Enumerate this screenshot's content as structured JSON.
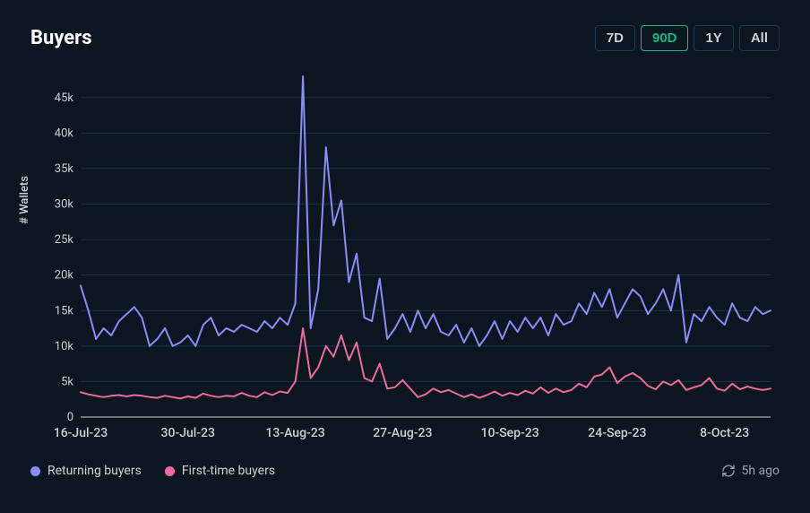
{
  "title": "Buyers",
  "range_buttons": [
    "7D",
    "90D",
    "1Y",
    "All"
  ],
  "range_active_index": 1,
  "chart": {
    "type": "line",
    "y_label": "# Wallets",
    "background_color": "#0b1620",
    "grid_color": "#1e3340",
    "axis_color": "#c9d1d9",
    "tick_font_size": 13,
    "y_ticks": [
      0,
      "5k",
      "10k",
      "15k",
      "20k",
      "25k",
      "30k",
      "35k",
      "40k",
      "45k"
    ],
    "y_values": [
      0,
      5000,
      10000,
      15000,
      20000,
      25000,
      30000,
      35000,
      40000,
      45000
    ],
    "ylim": [
      0,
      48000
    ],
    "x_ticks": [
      "16-Jul-23",
      "30-Jul-23",
      "13-Aug-23",
      "27-Aug-23",
      "10-Sep-23",
      "24-Sep-23",
      "8-Oct-23"
    ],
    "x_tick_positions": [
      0,
      14,
      28,
      42,
      56,
      70,
      84
    ],
    "x_domain": [
      0,
      90
    ],
    "line_width": 2,
    "series": [
      {
        "name": "Returning buyers",
        "color": "#8b8cf9",
        "data": [
          18500,
          15000,
          11000,
          12500,
          11500,
          13500,
          14500,
          15500,
          14000,
          10000,
          11000,
          12500,
          10000,
          10500,
          11500,
          10000,
          13000,
          14000,
          11500,
          12500,
          12000,
          13000,
          12500,
          12000,
          13500,
          12500,
          14000,
          13000,
          16000,
          48000,
          12500,
          18000,
          38000,
          27000,
          30500,
          19000,
          23000,
          14000,
          13500,
          19500,
          11000,
          12500,
          14500,
          12000,
          15000,
          12500,
          14500,
          12000,
          11500,
          13000,
          10500,
          12500,
          10000,
          11500,
          13500,
          11000,
          13500,
          12000,
          14000,
          12500,
          14000,
          11500,
          14500,
          13000,
          13500,
          16000,
          14500,
          17500,
          15500,
          18000,
          14000,
          16000,
          18000,
          17000,
          14500,
          16000,
          18000,
          15000,
          20000,
          10500,
          14500,
          13500,
          15500,
          14000,
          13000,
          16000,
          14000,
          13500,
          15500,
          14500,
          15000
        ]
      },
      {
        "name": "First-time buyers",
        "color": "#ec6a9f",
        "data": [
          3500,
          3200,
          3000,
          2800,
          3000,
          3100,
          2900,
          3100,
          3000,
          2800,
          2700,
          3000,
          2800,
          2600,
          2900,
          2700,
          3300,
          3000,
          2800,
          3000,
          2900,
          3400,
          3000,
          2800,
          3500,
          3100,
          3600,
          3400,
          5000,
          12500,
          5500,
          7000,
          10000,
          8500,
          11500,
          8000,
          10500,
          5500,
          5000,
          7500,
          4000,
          4200,
          5200,
          4000,
          2800,
          3200,
          4000,
          3500,
          3800,
          3300,
          2800,
          3200,
          2700,
          3100,
          3600,
          3000,
          3400,
          3100,
          3700,
          3300,
          4200,
          3400,
          4000,
          3500,
          3800,
          4700,
          4200,
          5700,
          6000,
          7000,
          4800,
          5700,
          6200,
          5500,
          4400,
          3900,
          5000,
          4500,
          5200,
          3800,
          4200,
          4500,
          5500,
          4000,
          3700,
          4700,
          3900,
          4300,
          4000,
          3800,
          4000
        ]
      }
    ]
  },
  "legend": [
    {
      "label": "Returning buyers",
      "color": "#8b8cf9"
    },
    {
      "label": "First-time buyers",
      "color": "#ec6a9f"
    }
  ],
  "timestamp": "5h ago",
  "refresh_icon_color": "#9ca3af"
}
